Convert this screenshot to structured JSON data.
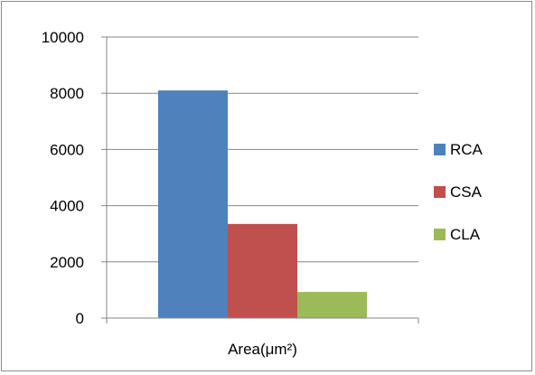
{
  "chart_data": {
    "type": "bar",
    "categories": [
      "Area(μm²)"
    ],
    "series": [
      {
        "name": "RCA",
        "values": [
          8100
        ],
        "color": "#4f81bd"
      },
      {
        "name": "CSA",
        "values": [
          3350
        ],
        "color": "#c0504d"
      },
      {
        "name": "CLA",
        "values": [
          930
        ],
        "color": "#9bbb59"
      }
    ],
    "ylim": [
      0,
      10000
    ],
    "yticks": [
      0,
      2000,
      4000,
      6000,
      8000,
      10000
    ],
    "title": "",
    "xlabel": "",
    "ylabel": "",
    "grid": true,
    "legend_position": "right"
  }
}
